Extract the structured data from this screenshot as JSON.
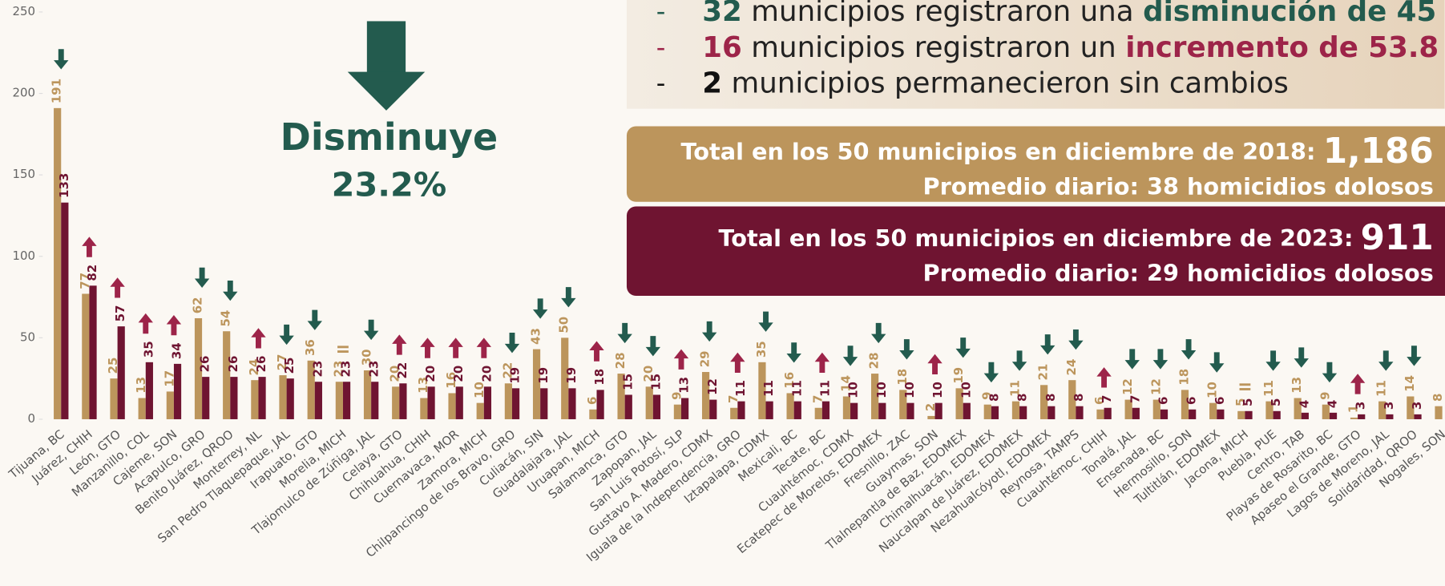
{
  "header": {
    "bullets": [
      {
        "bullet": "-",
        "number": "32",
        "text": "municipios registraron una",
        "highlight": "disminución de 45"
      },
      {
        "bullet": "-",
        "number": "16",
        "text": "municipios registraron un",
        "highlight": "incremento de 53.8"
      },
      {
        "bullet": "-",
        "number": "2",
        "text": "municipios permanecieron sin cambios"
      }
    ],
    "box_2018": {
      "label": "Total en los 50 municipios en diciembre de 2018:",
      "total": "1,186",
      "average": "Promedio diario: 38 homicidios dolosos"
    },
    "box_2023": {
      "label": "Total en los 50 municipios en diciembre de 2023:",
      "total": "911",
      "average": "Promedio diario: 29 homicidios dolosos"
    },
    "callout": {
      "title": "Disminuye",
      "value": "23.2%"
    }
  },
  "chart_data": {
    "type": "bar",
    "categories": [
      "Tijuana, BC",
      "Juárez, CHIH",
      "León, GTO",
      "Manzanillo, COL",
      "Cajeme, SON",
      "Acapulco, GRO",
      "Benito Juárez, QROO",
      "Monterrey, NL",
      "San Pedro Tlaquepaque, JAL",
      "Irapuato, GTO",
      "Morelia, MICH",
      "Tlajomulco de Zúñiga, JAL",
      "Celaya, GTO",
      "Chihuahua, CHIH",
      "Cuernavaca, MOR",
      "Zamora, MICH",
      "Chilpancingo de los Bravo, GRO",
      "Culiacán, SIN",
      "Guadalajara, JAL",
      "Uruapan, MICH",
      "Salamanca, GTO",
      "Zapopan, JAL",
      "San Luis Potosí, SLP",
      "Gustavo A. Madero, CDMX",
      "Iguala de la Independencia, GRO",
      "Iztapalapa, CDMX",
      "Mexicali, BC",
      "Tecate, BC",
      "Cuauhtémoc, CDMX",
      "Ecatepec de Morelos, EDOMEX",
      "Fresnillo, ZAC",
      "Guaymas, SON",
      "Tlalnepantla de Baz, EDOMEX",
      "Chimalhuacán, EDOMEX",
      "Naucalpan de Juárez, EDOMEX",
      "Nezahualcóyotl, EDOMEX",
      "Reynosa, TAMPS",
      "Cuauhtémoc, CHIH",
      "Tonalá, JAL",
      "Ensenada, BC",
      "Hermosillo, SON",
      "Tultitlán, EDOMEX",
      "Jacona, MICH",
      "Puebla, PUE",
      "Centro, TAB",
      "Playas de Rosarito, BC",
      "Apaseo el Grande, GTO",
      "Lagos de Moreno, JAL",
      "Solidaridad, QROO",
      "Nogales, SON"
    ],
    "series": [
      {
        "color": "#bc955c",
        "values": [
          191,
          77,
          25,
          13,
          17,
          62,
          54,
          24,
          27,
          36,
          23,
          30,
          20,
          13,
          16,
          10,
          22,
          43,
          50,
          6,
          28,
          20,
          9,
          29,
          7,
          35,
          16,
          7,
          14,
          28,
          18,
          2,
          19,
          9,
          11,
          21,
          24,
          6,
          12,
          12,
          18,
          10,
          5,
          11,
          13,
          9,
          1,
          11,
          14,
          8
        ]
      },
      {
        "color": "#6f1431",
        "values": [
          133,
          82,
          57,
          35,
          34,
          26,
          26,
          26,
          25,
          23,
          23,
          23,
          22,
          20,
          20,
          20,
          19,
          19,
          19,
          18,
          15,
          15,
          13,
          12,
          11,
          11,
          11,
          11,
          10,
          10,
          10,
          10,
          10,
          8,
          8,
          8,
          8,
          7,
          7,
          6,
          6,
          6,
          5,
          5,
          4,
          4,
          3,
          3,
          3,
          null
        ]
      }
    ],
    "ylim": [
      0,
      250
    ],
    "yticks": [
      0,
      50,
      100,
      150,
      200,
      250
    ],
    "up_color": "#9d2449",
    "down_color": "#235b4e"
  }
}
